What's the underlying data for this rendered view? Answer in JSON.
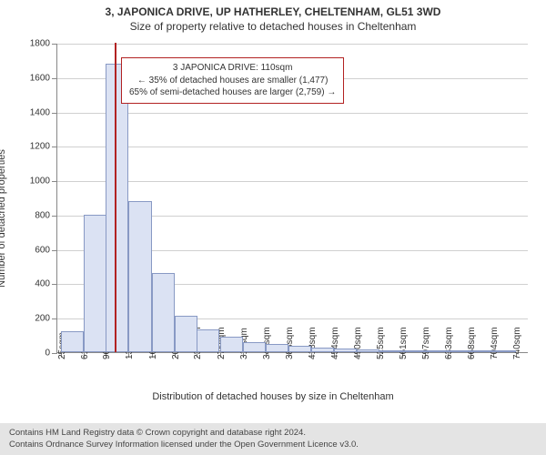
{
  "title": {
    "main": "3, JAPONICA DRIVE, UP HATHERLEY, CHELTENHAM, GL51 3WD",
    "sub": "Size of property relative to detached houses in Cheltenham",
    "fontsize_main": 12,
    "fontsize_sub": 12,
    "color": "#333333"
  },
  "chart": {
    "type": "histogram",
    "background_color": "#ffffff",
    "grid_color": "#d0d0d0",
    "axis_color": "#888888",
    "y": {
      "label": "Number of detached properties",
      "label_fontsize": 11,
      "min": 0,
      "max": 1800,
      "tick_step": 200,
      "ticks": [
        0,
        200,
        400,
        600,
        800,
        1000,
        1200,
        1400,
        1600,
        1800
      ],
      "tick_fontsize": 10
    },
    "x": {
      "label": "Distribution of detached houses by size in Cheltenham",
      "label_fontsize": 11,
      "min": 20,
      "max": 760,
      "tick_labels": [
        "25sqm",
        "61sqm",
        "96sqm",
        "132sqm",
        "168sqm",
        "204sqm",
        "239sqm",
        "275sqm",
        "311sqm",
        "347sqm",
        "383sqm",
        "418sqm",
        "454sqm",
        "490sqm",
        "525sqm",
        "561sqm",
        "597sqm",
        "633sqm",
        "668sqm",
        "704sqm",
        "740sqm"
      ],
      "tick_positions": [
        25,
        61,
        96,
        132,
        168,
        204,
        239,
        275,
        311,
        347,
        383,
        418,
        454,
        490,
        525,
        561,
        597,
        633,
        668,
        704,
        740
      ],
      "tick_fontsize": 10
    },
    "bars": {
      "fill_color": "#dbe2f3",
      "border_color": "#8899c4",
      "bin_width_sqm": 36,
      "bin_starts": [
        25,
        61,
        96,
        132,
        168,
        204,
        239,
        275,
        311,
        347,
        383,
        418,
        454,
        490,
        525,
        561,
        597,
        633,
        668,
        704
      ],
      "heights": [
        120,
        800,
        1680,
        880,
        460,
        210,
        130,
        90,
        60,
        50,
        35,
        25,
        20,
        15,
        10,
        10,
        5,
        5,
        5,
        4
      ]
    },
    "marker": {
      "position_sqm": 110,
      "color": "#b22222"
    },
    "annotation": {
      "lines": [
        "3 JAPONICA DRIVE: 110sqm",
        "← 35% of detached houses are smaller (1,477)",
        "65% of semi-detached houses are larger (2,759) →"
      ],
      "border_color": "#b22222",
      "background_color": "#ffffff",
      "fontsize": 10,
      "left_sqm": 120,
      "top_yval": 1720
    }
  },
  "footer": {
    "line1": "Contains HM Land Registry data © Crown copyright and database right 2024.",
    "line2": "Contains Ordnance Survey Information licensed under the Open Government Licence v3.0.",
    "background_color": "#e4e4e4",
    "fontsize": 9.5,
    "color": "#444444"
  }
}
